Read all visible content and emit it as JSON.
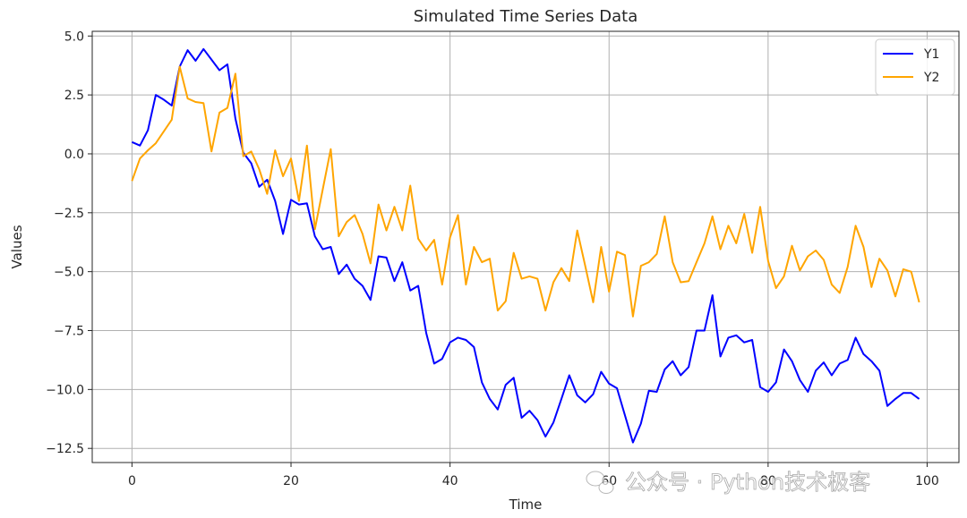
{
  "watermark": "公众号 · Python技术极客",
  "chart_data": {
    "type": "line",
    "title": "Simulated Time Series Data",
    "xlabel": "Time",
    "ylabel": "Values",
    "xlim": [
      -5,
      104
    ],
    "ylim": [
      -13.1,
      5.2
    ],
    "xticks": [
      0,
      20,
      40,
      60,
      80,
      100
    ],
    "yticks": [
      5.0,
      2.5,
      0.0,
      -2.5,
      -5.0,
      -7.5,
      -10.0,
      -12.5
    ],
    "xtick_labels": [
      "0",
      "20",
      "40",
      "60",
      "80",
      "100"
    ],
    "ytick_labels": [
      "5.0",
      "2.5",
      "0.0",
      "−2.5",
      "−5.0",
      "−7.5",
      "−10.0",
      "−12.5"
    ],
    "grid": true,
    "legend_position": "top-right",
    "x": [
      0,
      1,
      2,
      3,
      4,
      5,
      6,
      7,
      8,
      9,
      10,
      11,
      12,
      13,
      14,
      15,
      16,
      17,
      18,
      19,
      20,
      21,
      22,
      23,
      24,
      25,
      26,
      27,
      28,
      29,
      30,
      31,
      32,
      33,
      34,
      35,
      36,
      37,
      38,
      39,
      40,
      41,
      42,
      43,
      44,
      45,
      46,
      47,
      48,
      49,
      50,
      51,
      52,
      53,
      54,
      55,
      56,
      57,
      58,
      59,
      60,
      61,
      62,
      63,
      64,
      65,
      66,
      67,
      68,
      69,
      70,
      71,
      72,
      73,
      74,
      75,
      76,
      77,
      78,
      79,
      80,
      81,
      82,
      83,
      84,
      85,
      86,
      87,
      88,
      89,
      90,
      91,
      92,
      93,
      94,
      95,
      96,
      97,
      98,
      99
    ],
    "series": [
      {
        "name": "Y1",
        "color": "#0000ff",
        "values": [
          0.5,
          0.35,
          1.0,
          2.5,
          2.3,
          2.05,
          3.7,
          4.4,
          3.95,
          4.45,
          4.0,
          3.55,
          3.8,
          1.5,
          0.05,
          -0.4,
          -1.4,
          -1.1,
          -2.0,
          -3.4,
          -1.95,
          -2.15,
          -2.1,
          -3.5,
          -4.05,
          -3.95,
          -5.1,
          -4.7,
          -5.3,
          -5.6,
          -6.2,
          -4.35,
          -4.4,
          -5.4,
          -4.6,
          -5.8,
          -5.6,
          -7.6,
          -8.9,
          -8.7,
          -8.0,
          -7.8,
          -7.9,
          -8.2,
          -9.7,
          -10.4,
          -10.85,
          -9.8,
          -9.5,
          -11.2,
          -10.9,
          -11.3,
          -12.0,
          -11.4,
          -10.4,
          -9.4,
          -10.25,
          -10.55,
          -10.2,
          -9.25,
          -9.75,
          -9.95,
          -11.1,
          -12.25,
          -11.45,
          -10.05,
          -10.1,
          -9.15,
          -8.8,
          -9.4,
          -9.05,
          -7.5,
          -7.5,
          -6.0,
          -8.6,
          -7.8,
          -7.7,
          -8.0,
          -7.9,
          -9.9,
          -10.1,
          -9.7,
          -8.3,
          -8.8,
          -9.6,
          -10.1,
          -9.2,
          -8.85,
          -9.4,
          -8.9,
          -8.75,
          -7.8,
          -8.5,
          -8.8,
          -9.2,
          -10.7,
          -10.4,
          -10.15,
          -10.15,
          -10.4
        ]
      },
      {
        "name": "Y2",
        "color": "#ffa500",
        "values": [
          -1.15,
          -0.2,
          0.15,
          0.45,
          0.95,
          1.45,
          3.7,
          2.35,
          2.2,
          2.15,
          0.1,
          1.75,
          1.95,
          3.4,
          -0.1,
          0.1,
          -0.65,
          -1.7,
          0.15,
          -0.95,
          -0.2,
          -2.0,
          0.35,
          -3.2,
          -1.5,
          0.2,
          -3.5,
          -2.9,
          -2.6,
          -3.4,
          -4.65,
          -2.15,
          -3.25,
          -2.25,
          -3.25,
          -1.35,
          -3.6,
          -4.1,
          -3.65,
          -5.55,
          -3.55,
          -2.6,
          -5.55,
          -3.95,
          -4.6,
          -4.45,
          -6.65,
          -6.25,
          -4.2,
          -5.3,
          -5.2,
          -5.3,
          -6.65,
          -5.45,
          -4.85,
          -5.4,
          -3.25,
          -4.75,
          -6.3,
          -3.95,
          -5.85,
          -4.15,
          -4.3,
          -6.9,
          -4.75,
          -4.6,
          -4.25,
          -2.65,
          -4.6,
          -5.45,
          -5.4,
          -4.6,
          -3.8,
          -2.65,
          -4.05,
          -3.05,
          -3.8,
          -2.55,
          -4.2,
          -2.25,
          -4.55,
          -5.7,
          -5.2,
          -3.9,
          -4.95,
          -4.35,
          -4.1,
          -4.5,
          -5.55,
          -5.9,
          -4.8,
          -3.05,
          -3.95,
          -5.65,
          -4.45,
          -4.95,
          -6.05,
          -4.9,
          -5.0,
          -6.3
        ]
      }
    ]
  }
}
